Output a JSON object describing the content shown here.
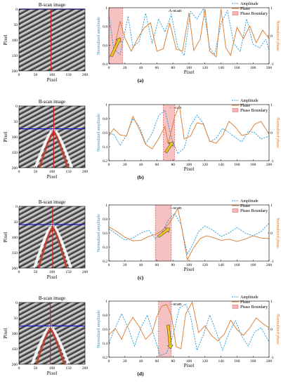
{
  "colors": {
    "amplitude": "#2a9ad6",
    "phase": "#d9782a",
    "boundary_fill": "#f4b6b6",
    "boundary_edge": "#d63a3a",
    "hline": "#1010d0",
    "vline": "#d81e1e",
    "arrow": "#f2c31a"
  },
  "chart_data": [
    {
      "panel_label": "(a)",
      "bscan": {
        "title": "B-scan image",
        "xlabel": "Pixel",
        "ylabel": "Pixel",
        "xticks": [
          "0",
          "50",
          "100",
          "150",
          "200"
        ],
        "yticks": [
          "0",
          "50",
          "100",
          "150",
          "200"
        ],
        "hline_y": 0,
        "vline_x": 97,
        "hyperbola": "none"
      },
      "ascan": {
        "type": "line",
        "title": "A-scan",
        "xlabel": "Pixel",
        "ylabel_left": "Normalized amplitude",
        "ylabel_right": "Normalized phase",
        "xlim": [
          0,
          200
        ],
        "ylim_left": [
          0.4,
          1.0
        ],
        "ylim_right": [
          -1,
          1
        ],
        "xticks": [
          "0",
          "20",
          "40",
          "60",
          "80",
          "100",
          "120",
          "140",
          "160",
          "180",
          "200"
        ],
        "yticks_left": [
          "0.4",
          "0.6",
          "0.8",
          "1"
        ],
        "yticks_right": [
          "-1",
          "0",
          "1"
        ],
        "legend": [
          "Amplitude",
          "Phase",
          "Phase Boundary"
        ],
        "boundary": [
          0,
          17
        ],
        "arrow": {
          "from": [
            3,
            0.48
          ],
          "to": [
            14,
            0.68
          ]
        },
        "series": [
          {
            "name": "Amplitude",
            "axis": "left",
            "x": [
              0,
              6,
              14,
              24,
              30,
              38,
              46,
              54,
              62,
              70,
              78,
              86,
              94,
              102,
              110,
              118,
              126,
              132,
              140,
              148,
              156,
              164,
              172,
              180,
              188,
              196,
              200
            ],
            "y": [
              0.93,
              0.56,
              0.5,
              0.91,
              0.58,
              0.64,
              0.94,
              0.62,
              0.88,
              0.74,
              0.93,
              0.58,
              0.49,
              0.96,
              0.88,
              0.99,
              0.57,
              0.5,
              0.83,
              0.97,
              0.62,
              0.53,
              0.88,
              0.61,
              0.57,
              0.66,
              0.55
            ]
          },
          {
            "name": "Phase",
            "axis": "right",
            "x": [
              0,
              6,
              14,
              20,
              28,
              36,
              44,
              52,
              60,
              68,
              76,
              84,
              92,
              100,
              106,
              114,
              120,
              126,
              134,
              140,
              146,
              152,
              160,
              168,
              176,
              184,
              192,
              200
            ],
            "y": [
              -0.78,
              -0.55,
              0.52,
              -0.08,
              -0.55,
              -0.1,
              0.28,
              0.46,
              -0.55,
              -0.46,
              0.46,
              -0.47,
              -0.55,
              0.82,
              -0.52,
              -0.12,
              0.96,
              -0.55,
              -0.75,
              0.96,
              -0.42,
              -0.7,
              0.3,
              -0.1,
              0.35,
              -0.25,
              0.2,
              -0.1
            ]
          }
        ]
      }
    },
    {
      "panel_label": "(b)",
      "bscan": {
        "title": "B-scan image",
        "xlabel": "Pixel",
        "ylabel": "Pixel",
        "xticks": [
          "0",
          "50",
          "100",
          "150",
          "200"
        ],
        "yticks": [
          "0",
          "50",
          "100",
          "150",
          "200"
        ],
        "hline_y": 74,
        "vline_x": 105,
        "hyperbola": "apex"
      },
      "ascan": {
        "type": "line",
        "title": "A-scan",
        "xlabel": "Pixel",
        "ylabel_left": "Normalized amplitude",
        "ylabel_right": "Normalized phase",
        "xlim": [
          0,
          200
        ],
        "ylim_left": [
          0.2,
          1.0
        ],
        "ylim_right": [
          -1,
          1
        ],
        "xticks": [
          "0",
          "20",
          "40",
          "60",
          "80",
          "100",
          "120",
          "140",
          "160",
          "180",
          "200"
        ],
        "yticks_left": [
          "0.2",
          "0.4",
          "0.6",
          "0.8",
          "1"
        ],
        "yticks_right": [
          "-1",
          "0",
          "1"
        ],
        "legend": [
          "Amplitude",
          "Phase",
          "Phase Boundary"
        ],
        "boundary": [
          68,
          82
        ],
        "arrow": {
          "from": [
            71,
            0.32
          ],
          "to": [
            80,
            0.47
          ]
        },
        "series": [
          {
            "name": "Amplitude",
            "axis": "left",
            "x": [
              0,
              6,
              14,
              22,
              30,
              38,
              46,
              54,
              62,
              70,
              78,
              86,
              94,
              102,
              110,
              118,
              126,
              134,
              142,
              150,
              158,
              166,
              174,
              182,
              190,
              200
            ],
            "y": [
              0.58,
              0.58,
              0.42,
              0.56,
              0.8,
              0.69,
              0.44,
              0.59,
              0.84,
              0.92,
              0.53,
              0.3,
              0.38,
              0.7,
              0.85,
              0.73,
              0.47,
              0.52,
              0.66,
              0.6,
              0.53,
              0.47,
              0.62,
              0.6,
              0.51,
              0.55
            ]
          },
          {
            "name": "Phase",
            "axis": "right",
            "x": [
              0,
              6,
              14,
              22,
              30,
              38,
              46,
              54,
              62,
              70,
              74,
              82,
              88,
              94,
              102,
              110,
              118,
              126,
              134,
              142,
              150,
              158,
              166,
              174,
              182,
              190,
              200
            ],
            "y": [
              -0.12,
              0.14,
              -0.08,
              -0.12,
              0.58,
              0.12,
              -0.42,
              -0.58,
              -0.22,
              0.22,
              -0.4,
              0.55,
              0.96,
              -0.22,
              -0.12,
              0.35,
              0.3,
              -0.3,
              -0.38,
              -0.1,
              0.4,
              0.2,
              -0.1,
              -0.05,
              0.3,
              0.4,
              -0.05
            ]
          }
        ]
      }
    },
    {
      "panel_label": "(c)",
      "bscan": {
        "title": "B-scan image",
        "xlabel": "Pixel",
        "ylabel": "Pixel",
        "xticks": [
          "0",
          "50",
          "100",
          "150",
          "200"
        ],
        "yticks": [
          "0",
          "50",
          "100",
          "150",
          "200"
        ],
        "hline_y": 59,
        "vline_x": 102,
        "hyperbola": "apex"
      },
      "ascan": {
        "type": "line",
        "title": "A-scan",
        "xlabel": "Pixel",
        "ylabel_left": "Normalized amplitude",
        "ylabel_right": "Normalized phase",
        "xlim": [
          0,
          200
        ],
        "ylim_left": [
          0.2,
          1.0
        ],
        "ylim_right": [
          -1,
          1
        ],
        "xticks": [
          "0",
          "20",
          "40",
          "60",
          "80",
          "100",
          "120",
          "140",
          "160",
          "180",
          "200"
        ],
        "yticks_left": [
          "0.2",
          "0.4",
          "0.6",
          "0.8",
          "1"
        ],
        "yticks_right": [
          "-1",
          "0",
          "1"
        ],
        "legend": [
          "Amplitude",
          "Phase",
          "Phase Boundary"
        ],
        "boundary": [
          58,
          78
        ],
        "arrow": {
          "from": [
            62,
            0.55
          ],
          "to": [
            76,
            0.67
          ]
        },
        "series": [
          {
            "name": "Amplitude",
            "axis": "left",
            "x": [
              0,
              10,
              20,
              30,
              40,
              50,
              58,
              66,
              74,
              82,
              90,
              98,
              104,
              112,
              120,
              130,
              140,
              150,
              160,
              170,
              180,
              190,
              200
            ],
            "y": [
              0.66,
              0.58,
              0.5,
              0.53,
              0.6,
              0.64,
              0.52,
              0.6,
              0.78,
              0.88,
              0.72,
              0.3,
              0.42,
              0.62,
              0.7,
              0.64,
              0.55,
              0.6,
              0.68,
              0.6,
              0.56,
              0.62,
              0.74
            ]
          },
          {
            "name": "Phase",
            "axis": "right",
            "x": [
              0,
              10,
              20,
              30,
              40,
              50,
              58,
              66,
              74,
              80,
              86,
              90,
              98,
              106,
              114,
              122,
              130,
              140,
              150,
              160,
              170,
              180,
              190,
              200
            ],
            "y": [
              0.22,
              0.05,
              -0.15,
              -0.28,
              -0.26,
              -0.12,
              -0.05,
              0.08,
              0.3,
              0.55,
              0.88,
              0.35,
              -0.95,
              -0.52,
              -0.2,
              -0.1,
              -0.16,
              -0.26,
              -0.22,
              -0.3,
              -0.22,
              -0.1,
              -0.18,
              -0.2
            ]
          }
        ]
      }
    },
    {
      "panel_label": "(d)",
      "bscan": {
        "title": "B-scan image",
        "xlabel": "Pixel",
        "ylabel": "Pixel",
        "xticks": [
          "0",
          "50",
          "100",
          "150",
          "200"
        ],
        "yticks": [
          "0",
          "50",
          "100",
          "150",
          "200"
        ],
        "hline_y": 76,
        "vline_x": 95,
        "hyperbola": "apex"
      },
      "ascan": {
        "type": "line",
        "title": "A-scan",
        "xlabel": "Pixel",
        "ylabel_left": "Normalized amplitude",
        "ylabel_right": "Normalized phase",
        "xlim": [
          0,
          200
        ],
        "ylim_left": [
          0.2,
          1.0
        ],
        "ylim_right": [
          -1,
          1
        ],
        "xticks": [
          "0",
          "20",
          "40",
          "60",
          "80",
          "100",
          "120",
          "140",
          "160",
          "180",
          "200"
        ],
        "yticks_left": [
          "0.2",
          "0.4",
          "0.6",
          "0.8",
          "1"
        ],
        "yticks_right": [
          "-1",
          "0",
          "1"
        ],
        "legend": [
          "Amplitude",
          "Phase",
          "Phase Boundary"
        ],
        "boundary": [
          62,
          78
        ],
        "arrow": {
          "from": [
            74,
            0.66
          ],
          "to": [
            77,
            0.32
          ]
        },
        "series": [
          {
            "name": "Amplitude",
            "axis": "left",
            "x": [
              0,
              8,
              16,
              24,
              32,
              40,
              48,
              56,
              64,
              72,
              80,
              88,
              96,
              102,
              110,
              118,
              126,
              134,
              142,
              150,
              158,
              166,
              174,
              182,
              190,
              200
            ],
            "y": [
              0.4,
              0.62,
              0.82,
              0.62,
              0.36,
              0.62,
              0.8,
              0.52,
              0.22,
              0.26,
              0.5,
              0.9,
              0.96,
              0.78,
              0.3,
              0.52,
              0.8,
              0.56,
              0.3,
              0.55,
              0.72,
              0.5,
              0.36,
              0.56,
              0.62,
              0.42
            ]
          },
          {
            "name": "Phase",
            "axis": "right",
            "x": [
              0,
              8,
              16,
              22,
              30,
              38,
              46,
              54,
              60,
              66,
              72,
              78,
              84,
              90,
              96,
              104,
              112,
              120,
              128,
              136,
              144,
              152,
              160,
              168,
              176,
              184,
              192,
              200
            ],
            "y": [
              -0.2,
              0.02,
              -0.36,
              0.05,
              0.42,
              0.08,
              -0.36,
              -0.12,
              0.46,
              0.82,
              0.88,
              0.5,
              -0.62,
              -0.7,
              0.55,
              0.96,
              -0.12,
              0.12,
              -0.22,
              -0.42,
              -0.18,
              0.32,
              -0.02,
              -0.22,
              0.05,
              0.4,
              0.2,
              0.05
            ]
          }
        ]
      }
    }
  ]
}
